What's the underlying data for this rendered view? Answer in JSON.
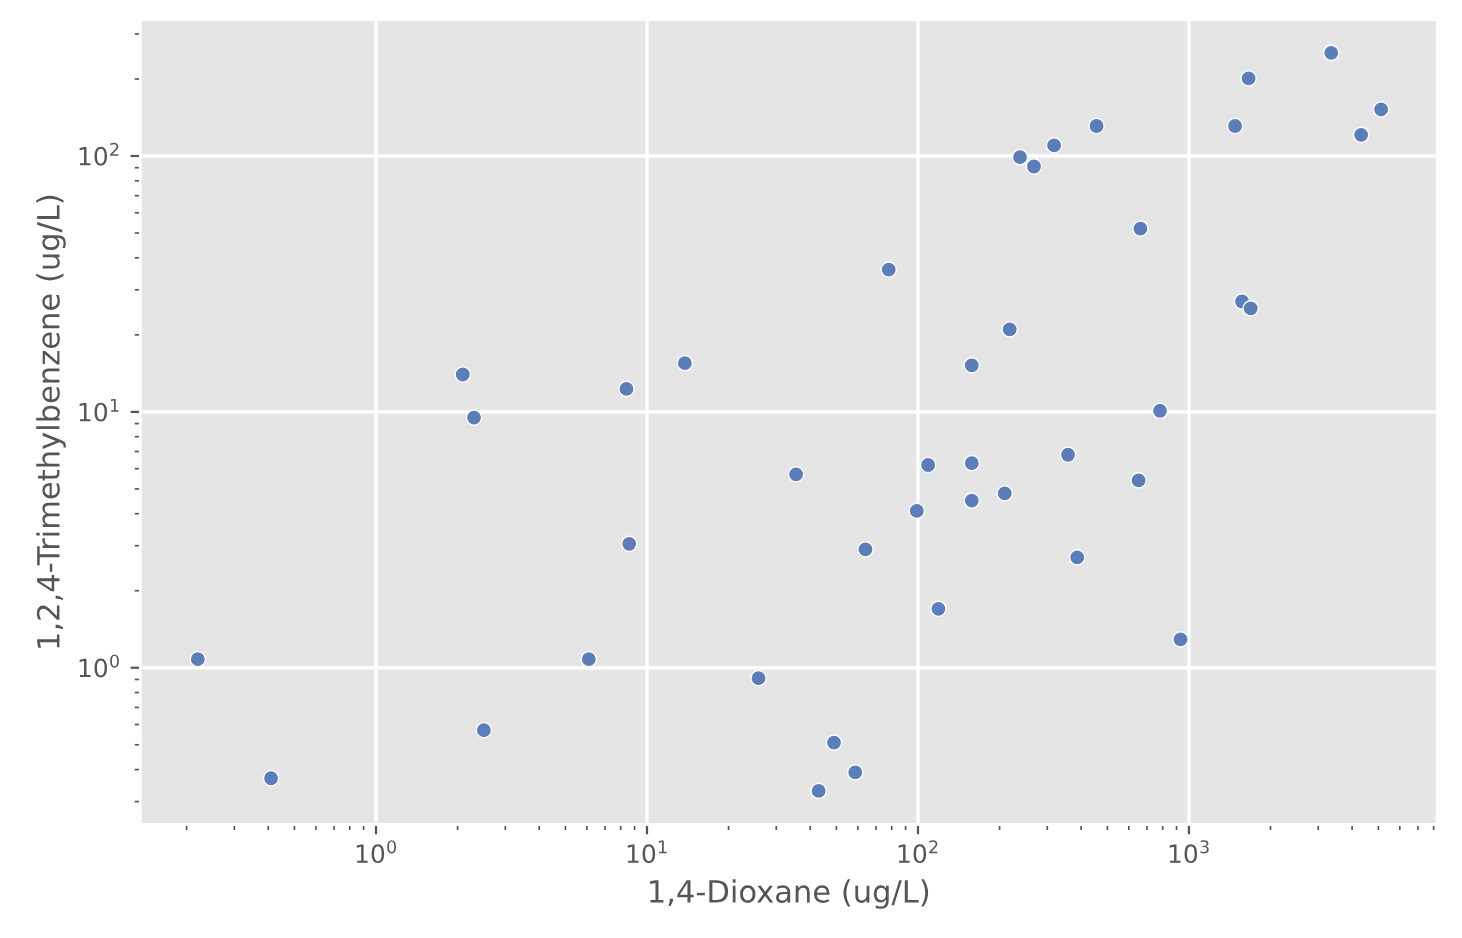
{
  "chart_data": {
    "type": "scatter",
    "xlabel": "1,4-Dioxane (ug/L)",
    "ylabel": "1,2,4-Trimethylbenzene (ug/L)",
    "log": "xy",
    "grid": true,
    "marker": "circle",
    "xlim": [
      0.135,
      8240
    ],
    "ylim": [
      0.244,
      341
    ],
    "xticks": [
      {
        "value": 1,
        "label": "10$^{0}$"
      },
      {
        "value": 10,
        "label": "10$^{1}$"
      },
      {
        "value": 100,
        "label": "10$^{2}$"
      },
      {
        "value": 1000,
        "label": "10$^{3}$"
      }
    ],
    "yticks": [
      {
        "value": 1,
        "label": "10$^{0}$"
      },
      {
        "value": 10,
        "label": "10$^{1}$"
      },
      {
        "value": 100,
        "label": "10$^{2}$"
      }
    ],
    "series": [
      {
        "color": "#5b7dba",
        "x": [
          0.22,
          0.41,
          2.09,
          2.3,
          2.5,
          6.1,
          8.4,
          8.6,
          13.8,
          35.5,
          25.8,
          43,
          49,
          58.7,
          64,
          78,
          99,
          109,
          119,
          158,
          158,
          158,
          209,
          218,
          238,
          268,
          318,
          358,
          387,
          456,
          662,
          652,
          782,
          931,
          1480,
          1660,
          1570,
          1690,
          3350,
          4320,
          5120
        ],
        "values": [
          1.08,
          0.37,
          14.0,
          9.5,
          0.57,
          1.08,
          12.3,
          3.05,
          15.5,
          5.7,
          0.91,
          0.33,
          0.51,
          0.39,
          2.9,
          36,
          4.1,
          6.2,
          1.7,
          15.2,
          6.3,
          4.5,
          4.8,
          21,
          99,
          91,
          110,
          6.8,
          2.7,
          131,
          52,
          5.4,
          10.1,
          1.29,
          131,
          201,
          27,
          25.4,
          253,
          121,
          152
        ]
      }
    ]
  }
}
